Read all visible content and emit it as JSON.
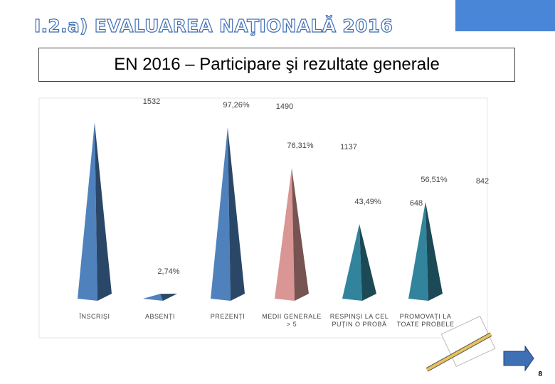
{
  "header": {
    "title": "I.2.a) EVALUAREA NAŢIONALĂ 2016",
    "subtitle": "EN 2016 – Participare şi rezultate generale",
    "page_number": "8"
  },
  "chart_data": {
    "type": "pyramid",
    "categories": [
      "ÎNSCRIȘI",
      "ABSENȚI",
      "PREZENȚI",
      "MEDII GENERALE > 5",
      "RESPINȘI LA CEL PUȚIN O PROBĂ",
      "PROMOVAȚI LA TOATE PROBELE"
    ],
    "colors": [
      "#4f81bd",
      "#4f81bd",
      "#4f81bd",
      "#d99694",
      "#31849b",
      "#31849b"
    ],
    "ylim": [
      0,
      1700
    ],
    "series": [
      {
        "values": [
          1532,
          42,
          1490,
          1137,
          648,
          842
        ],
        "value_labels": [
          "1532",
          null,
          "1490",
          "1137",
          "648",
          "842"
        ]
      },
      {
        "values": [
          null,
          2.74,
          97.26,
          76.31,
          43.49,
          56.51
        ],
        "value_labels": [
          null,
          "2,74%",
          "97,26%",
          "76,31%",
          "43,49%",
          "56,51%"
        ]
      }
    ]
  }
}
